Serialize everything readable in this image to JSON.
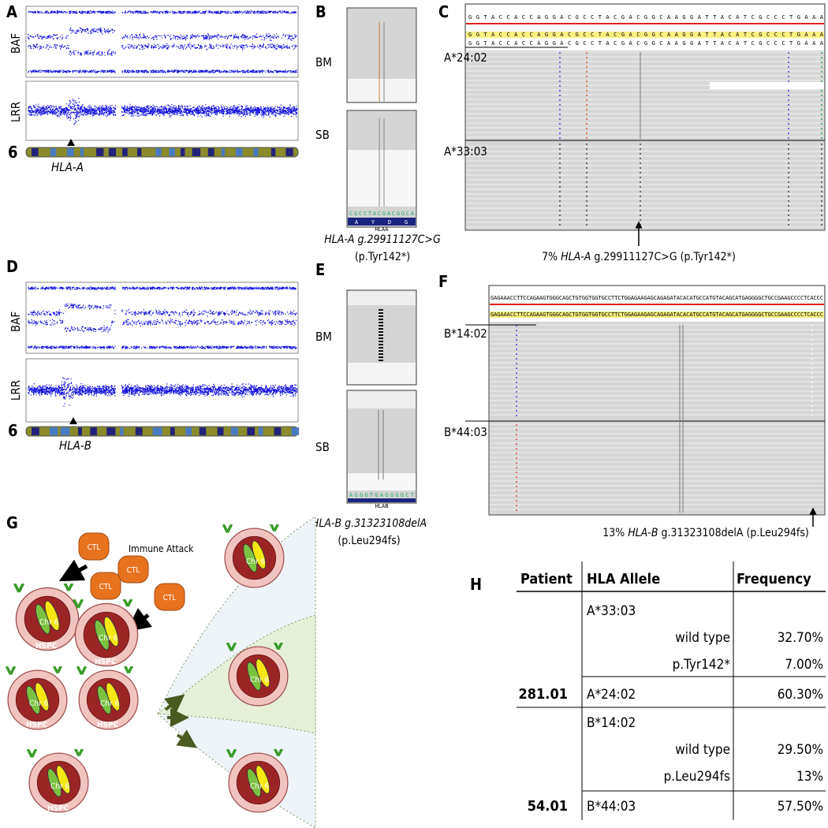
{
  "panel_a": {
    "letter": "A",
    "baf": "BAF",
    "lrr": "LRR",
    "chromosome": "6",
    "gene": "HLA-A"
  },
  "panel_b": {
    "letter": "B",
    "bm": "BM",
    "sb": "SB",
    "sequence": "CGCCTACGACGGCA",
    "amino_acids": [
      "A",
      "Y",
      "D",
      "G"
    ],
    "gene_track": "HLAA",
    "variant": "HLA-A g.29911127C>G",
    "protein": "(p.Tyr142*)"
  },
  "panel_c": {
    "letter": "C",
    "reference": "GGTACCACCAGGACGCCTACGACGGCAAGGATTACATCGCCCTGAAA",
    "allele_1": "A*24:02",
    "allele_2": "A*33:03",
    "caption_percent": "7%",
    "caption_gene": "HLA-A",
    "caption_variant": "g.29911127C>G (p.Tyr142*)"
  },
  "panel_d": {
    "letter": "D",
    "baf": "BAF",
    "lrr": "LRR",
    "chromosome": "6",
    "gene": "HLA-B"
  },
  "panel_e": {
    "letter": "E",
    "bm": "BM",
    "sb": "SB",
    "sequence": "AGGGTGAGGGGCT",
    "gene_track": "HLAB",
    "variant": "HLA-B g.31323108delA",
    "protein": "(p.Leu294fs)"
  },
  "panel_f": {
    "letter": "F",
    "reference": "GAGAAACCTTCCAGAAGTGGGCAGCTGTGGTGGTGCCTTCTGGAGAAGAGCAGAGATACACATGCCATGTACAGCATGAGGGGCTGCCGAAGCCCCTCACCC",
    "allele_1": "B*14:02",
    "allele_2": "B*44:03",
    "caption_percent": "13%",
    "caption_gene": "HLA-B",
    "caption_variant": "g.31323108delA (p.Leu294fs)"
  },
  "panel_g": {
    "letter": "G",
    "ctl": [
      "CTL",
      "CTL",
      "CTL",
      "CTL"
    ],
    "immune_attack": "Immune Attack",
    "chromosome_labels": [
      "Chr 6",
      "Chr 6",
      "Chr 6",
      "Chr 6",
      "Chr 6",
      "Chr 6",
      "Chr 6",
      "Chr 6"
    ],
    "cell_labels": [
      "HSPC",
      "HSPC",
      "HSPC",
      "HSPC",
      "HSPC"
    ]
  },
  "panel_h": {
    "letter": "H",
    "header": [
      "Patient",
      "HLA Allele",
      "Frequency"
    ],
    "patients": [
      {
        "id": "281.01",
        "alleles": [
          {
            "name": "A*33:03",
            "subtypes": [
              {
                "name": "wild type",
                "frequency": "32.70%"
              },
              {
                "name": "p.Tyr142*",
                "frequency": "7.00%"
              }
            ]
          },
          {
            "name": "A*24:02",
            "frequency": "60.30%"
          }
        ]
      },
      {
        "id": "54.01",
        "alleles": [
          {
            "name": "B*14:02",
            "subtypes": [
              {
                "name": "wild type",
                "frequency": "29.50%"
              },
              {
                "name": "p.Leu294fs",
                "frequency": "13%"
              }
            ]
          },
          {
            "name": "B*44:03",
            "frequency": "57.50%"
          }
        ]
      }
    ]
  }
}
